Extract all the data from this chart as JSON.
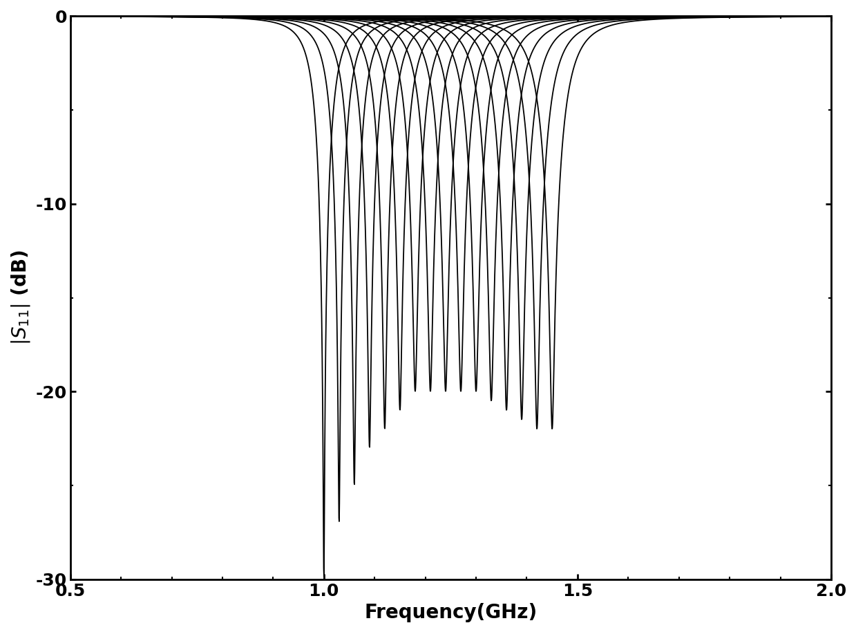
{
  "freq_start": 0.5,
  "freq_stop": 2.0,
  "freq_points": 3000,
  "ylim": [
    -30,
    0
  ],
  "xlim": [
    0.5,
    2.0
  ],
  "xlabel": "Frequency(GHz)",
  "ylabel": "$|S_{11}|$ (dB)",
  "xticks": [
    0.5,
    1.0,
    1.5,
    2.0
  ],
  "yticks": [
    0,
    -10,
    -20,
    -30
  ],
  "line_color": "#000000",
  "line_width": 1.3,
  "background_color": "#ffffff",
  "resonance_freqs": [
    1.0,
    1.03,
    1.06,
    1.09,
    1.12,
    1.15,
    1.18,
    1.21,
    1.24,
    1.27,
    1.3,
    1.33,
    1.36,
    1.39,
    1.42,
    1.45
  ],
  "Q_factors": [
    18,
    18,
    18,
    18,
    18,
    18,
    18,
    18,
    18,
    18,
    18,
    18,
    18,
    18,
    18,
    18
  ],
  "min_depths_dB": [
    -30,
    -27,
    -25,
    -23,
    -22,
    -21,
    -20,
    -20,
    -20,
    -20,
    -20,
    -20.5,
    -21,
    -21.5,
    -22,
    -22
  ],
  "figsize": [
    12.39,
    9.14
  ],
  "dpi": 100,
  "tick_fontsize": 18,
  "label_fontsize": 20
}
